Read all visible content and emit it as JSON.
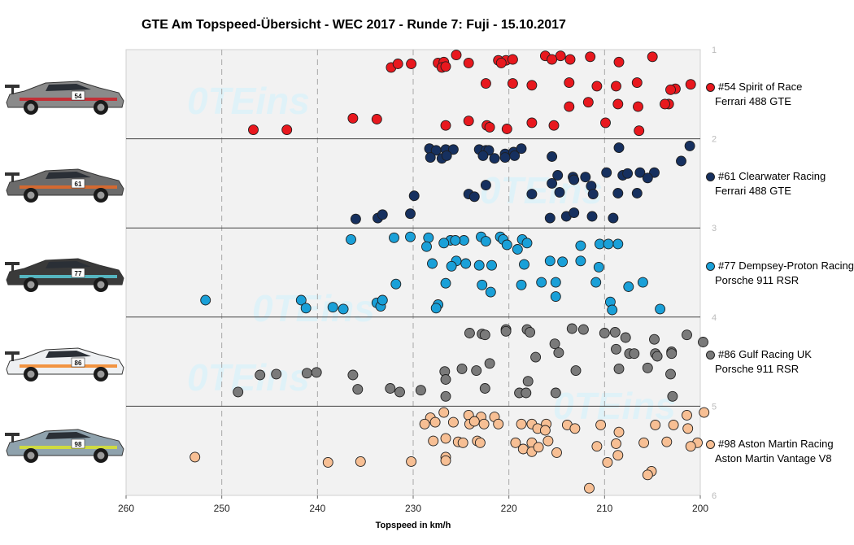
{
  "chart_data": {
    "type": "scatter",
    "title": "GTE Am  Topspeed-Übersicht  - WEC 2017 - Runde 7: Fuji  - 15.10.2017",
    "xlabel": "Topspeed in km/h",
    "xlim": [
      260,
      200
    ],
    "x_ticks": [
      260,
      250,
      240,
      230,
      220,
      210,
      200
    ],
    "x_tick_labels": [
      "260",
      "250",
      "240",
      "230",
      "220",
      "210",
      "200"
    ],
    "ylim": [
      1,
      6
    ],
    "y_ticks": [
      1,
      2,
      3,
      4,
      5,
      6
    ],
    "y_tick_labels": [
      "1",
      "2",
      "3",
      "4",
      "5",
      "6"
    ],
    "grid": true,
    "legend_position": "right",
    "series": [
      {
        "name": "#54 Spirit of Race",
        "car": "Ferrari 488 GTE",
        "color": "#e8181e",
        "points": [
          [
            225.5,
            1.06
          ],
          [
            216.2,
            1.07
          ],
          [
            214.6,
            1.07
          ],
          [
            211.5,
            1.08
          ],
          [
            205.0,
            1.08
          ],
          [
            227.4,
            1.15
          ],
          [
            226.8,
            1.14
          ],
          [
            221.1,
            1.12
          ],
          [
            220.3,
            1.12
          ],
          [
            219.6,
            1.11
          ],
          [
            213.6,
            1.11
          ],
          [
            215.5,
            1.11
          ],
          [
            208.5,
            1.14
          ],
          [
            232.3,
            1.2
          ],
          [
            231.6,
            1.16
          ],
          [
            230.2,
            1.16
          ],
          [
            227.0,
            1.2
          ],
          [
            226.6,
            1.19
          ],
          [
            224.2,
            1.15
          ],
          [
            220.8,
            1.15
          ],
          [
            222.4,
            1.38
          ],
          [
            219.6,
            1.38
          ],
          [
            217.6,
            1.4
          ],
          [
            213.7,
            1.37
          ],
          [
            210.8,
            1.41
          ],
          [
            208.8,
            1.41
          ],
          [
            206.6,
            1.37
          ],
          [
            201.0,
            1.39
          ],
          [
            202.6,
            1.44
          ],
          [
            203.1,
            1.45
          ],
          [
            211.7,
            1.59
          ],
          [
            208.6,
            1.61
          ],
          [
            203.3,
            1.61
          ],
          [
            203.7,
            1.61
          ],
          [
            206.5,
            1.64
          ],
          [
            213.7,
            1.64
          ],
          [
            246.7,
            1.9
          ],
          [
            243.2,
            1.9
          ],
          [
            236.3,
            1.77
          ],
          [
            233.8,
            1.78
          ],
          [
            226.6,
            1.85
          ],
          [
            224.2,
            1.8
          ],
          [
            222.3,
            1.85
          ],
          [
            222.0,
            1.87
          ],
          [
            220.2,
            1.89
          ],
          [
            217.6,
            1.82
          ],
          [
            215.3,
            1.85
          ],
          [
            209.9,
            1.82
          ],
          [
            206.4,
            1.91
          ]
        ]
      },
      {
        "name": "#61 Clearwater Racing",
        "car": "Ferrari 488 GTE",
        "color": "#16305f",
        "points": [
          [
            228.3,
            2.11
          ],
          [
            227.6,
            2.13
          ],
          [
            226.6,
            2.12
          ],
          [
            225.8,
            2.12
          ],
          [
            223.1,
            2.12
          ],
          [
            222.4,
            2.13
          ],
          [
            222.1,
            2.13
          ],
          [
            220.4,
            2.17
          ],
          [
            219.5,
            2.15
          ],
          [
            218.7,
            2.11
          ],
          [
            208.5,
            2.1
          ],
          [
            201.1,
            2.08
          ],
          [
            228.2,
            2.21
          ],
          [
            227.0,
            2.22
          ],
          [
            226.5,
            2.19
          ],
          [
            222.7,
            2.19
          ],
          [
            221.5,
            2.22
          ],
          [
            220.4,
            2.21
          ],
          [
            219.4,
            2.19
          ],
          [
            215.5,
            2.2
          ],
          [
            202.0,
            2.25
          ],
          [
            214.9,
            2.41
          ],
          [
            213.3,
            2.43
          ],
          [
            213.2,
            2.46
          ],
          [
            212.0,
            2.43
          ],
          [
            209.8,
            2.38
          ],
          [
            208.1,
            2.41
          ],
          [
            207.6,
            2.39
          ],
          [
            206.3,
            2.38
          ],
          [
            204.8,
            2.38
          ],
          [
            205.5,
            2.44
          ],
          [
            222.4,
            2.52
          ],
          [
            217.6,
            2.62
          ],
          [
            215.5,
            2.5
          ],
          [
            214.7,
            2.6
          ],
          [
            211.4,
            2.53
          ],
          [
            211.2,
            2.62
          ],
          [
            208.6,
            2.61
          ],
          [
            206.6,
            2.61
          ],
          [
            229.9,
            2.64
          ],
          [
            224.2,
            2.62
          ],
          [
            223.6,
            2.65
          ],
          [
            236.0,
            2.9
          ],
          [
            233.7,
            2.89
          ],
          [
            233.2,
            2.85
          ],
          [
            230.3,
            2.84
          ],
          [
            215.7,
            2.89
          ],
          [
            214.0,
            2.87
          ],
          [
            213.2,
            2.83
          ],
          [
            211.3,
            2.87
          ],
          [
            209.1,
            2.89
          ]
        ]
      },
      {
        "name": "#77 Dempsey-Proton Racing",
        "car": "Porsche 911 RSR",
        "color": "#1aa0d8",
        "points": [
          [
            230.3,
            3.1
          ],
          [
            228.4,
            3.11
          ],
          [
            226.1,
            3.14
          ],
          [
            224.7,
            3.14
          ],
          [
            222.9,
            3.1
          ],
          [
            220.9,
            3.1
          ],
          [
            220.6,
            3.13
          ],
          [
            218.6,
            3.13
          ],
          [
            236.5,
            3.13
          ],
          [
            232.0,
            3.11
          ],
          [
            226.8,
            3.17
          ],
          [
            225.6,
            3.14
          ],
          [
            222.4,
            3.15
          ],
          [
            220.2,
            3.19
          ],
          [
            218.1,
            3.17
          ],
          [
            212.5,
            3.2
          ],
          [
            208.6,
            3.18
          ],
          [
            210.5,
            3.18
          ],
          [
            209.6,
            3.18
          ],
          [
            219.1,
            3.24
          ],
          [
            228.6,
            3.21
          ],
          [
            214.4,
            3.38
          ],
          [
            212.5,
            3.37
          ],
          [
            215.7,
            3.37
          ],
          [
            225.5,
            3.37
          ],
          [
            228.0,
            3.4
          ],
          [
            224.5,
            3.4
          ],
          [
            221.8,
            3.42
          ],
          [
            218.4,
            3.41
          ],
          [
            226.0,
            3.43
          ],
          [
            223.1,
            3.42
          ],
          [
            210.6,
            3.44
          ],
          [
            222.8,
            3.64
          ],
          [
            231.8,
            3.63
          ],
          [
            226.6,
            3.62
          ],
          [
            218.7,
            3.64
          ],
          [
            216.6,
            3.61
          ],
          [
            215.1,
            3.61
          ],
          [
            210.9,
            3.61
          ],
          [
            206.0,
            3.61
          ],
          [
            207.5,
            3.66
          ],
          [
            221.9,
            3.72
          ],
          [
            215.1,
            3.77
          ],
          [
            251.7,
            3.81
          ],
          [
            241.7,
            3.81
          ],
          [
            241.2,
            3.9
          ],
          [
            238.4,
            3.89
          ],
          [
            237.3,
            3.91
          ],
          [
            233.8,
            3.84
          ],
          [
            233.4,
            3.88
          ],
          [
            233.2,
            3.81
          ],
          [
            227.4,
            3.86
          ],
          [
            227.6,
            3.9
          ],
          [
            209.4,
            3.83
          ],
          [
            209.2,
            3.92
          ],
          [
            204.2,
            3.91
          ]
        ]
      },
      {
        "name": "#86 Gulf Racing UK",
        "car": "Porsche 911 RSR",
        "color": "#7a7a7a",
        "points": [
          [
            224.1,
            4.18
          ],
          [
            222.8,
            4.19
          ],
          [
            222.5,
            4.2
          ],
          [
            220.3,
            4.14
          ],
          [
            220.3,
            4.16
          ],
          [
            218.1,
            4.14
          ],
          [
            217.8,
            4.17
          ],
          [
            213.4,
            4.13
          ],
          [
            212.2,
            4.14
          ],
          [
            210.0,
            4.18
          ],
          [
            208.9,
            4.17
          ],
          [
            207.8,
            4.23
          ],
          [
            204.8,
            4.25
          ],
          [
            201.4,
            4.2
          ],
          [
            199.7,
            4.28
          ],
          [
            215.2,
            4.3
          ],
          [
            214.8,
            4.4
          ],
          [
            208.8,
            4.36
          ],
          [
            207.4,
            4.41
          ],
          [
            206.9,
            4.41
          ],
          [
            204.7,
            4.41
          ],
          [
            203.0,
            4.39
          ],
          [
            204.5,
            4.44
          ],
          [
            203.0,
            4.41
          ],
          [
            217.2,
            4.45
          ],
          [
            222.0,
            4.52
          ],
          [
            208.5,
            4.58
          ],
          [
            205.5,
            4.57
          ],
          [
            203.1,
            4.64
          ],
          [
            226.7,
            4.61
          ],
          [
            224.9,
            4.58
          ],
          [
            223.4,
            4.6
          ],
          [
            213.0,
            4.6
          ],
          [
            246.0,
            4.65
          ],
          [
            244.3,
            4.64
          ],
          [
            241.1,
            4.63
          ],
          [
            240.1,
            4.62
          ],
          [
            236.3,
            4.65
          ],
          [
            226.6,
            4.7
          ],
          [
            218.0,
            4.72
          ],
          [
            235.8,
            4.81
          ],
          [
            232.4,
            4.8
          ],
          [
            231.4,
            4.84
          ],
          [
            229.2,
            4.82
          ],
          [
            222.5,
            4.8
          ],
          [
            218.9,
            4.85
          ],
          [
            218.2,
            4.85
          ],
          [
            215.1,
            4.85
          ],
          [
            248.3,
            4.84
          ],
          [
            226.6,
            4.89
          ],
          [
            202.9,
            4.89
          ]
        ]
      },
      {
        "name": "#98 Aston Martin Racing",
        "car": "Aston Martin Vantage V8",
        "color": "#f7bf94",
        "points": [
          [
            226.8,
            5.07
          ],
          [
            224.2,
            5.1
          ],
          [
            222.9,
            5.12
          ],
          [
            221.5,
            5.12
          ],
          [
            199.6,
            5.07
          ],
          [
            201.4,
            5.1
          ],
          [
            228.2,
            5.13
          ],
          [
            228.8,
            5.2
          ],
          [
            227.7,
            5.18
          ],
          [
            225.8,
            5.18
          ],
          [
            224.1,
            5.2
          ],
          [
            223.6,
            5.17
          ],
          [
            222.6,
            5.2
          ],
          [
            221.1,
            5.2
          ],
          [
            218.7,
            5.2
          ],
          [
            217.6,
            5.2
          ],
          [
            216.1,
            5.2
          ],
          [
            213.9,
            5.21
          ],
          [
            210.4,
            5.21
          ],
          [
            204.7,
            5.21
          ],
          [
            202.8,
            5.21
          ],
          [
            201.3,
            5.25
          ],
          [
            217.0,
            5.25
          ],
          [
            216.2,
            5.27
          ],
          [
            213.1,
            5.25
          ],
          [
            208.5,
            5.29
          ],
          [
            226.6,
            5.36
          ],
          [
            227.9,
            5.39
          ],
          [
            225.3,
            5.4
          ],
          [
            224.8,
            5.41
          ],
          [
            223.3,
            5.39
          ],
          [
            223.0,
            5.41
          ],
          [
            217.6,
            5.41
          ],
          [
            215.9,
            5.39
          ],
          [
            210.8,
            5.45
          ],
          [
            208.8,
            5.42
          ],
          [
            205.9,
            5.41
          ],
          [
            203.5,
            5.4
          ],
          [
            200.3,
            5.41
          ],
          [
            201.0,
            5.45
          ],
          [
            219.3,
            5.41
          ],
          [
            218.5,
            5.48
          ],
          [
            217.6,
            5.51
          ],
          [
            216.9,
            5.46
          ],
          [
            215.0,
            5.52
          ],
          [
            226.6,
            5.57
          ],
          [
            226.6,
            5.61
          ],
          [
            230.2,
            5.62
          ],
          [
            235.5,
            5.62
          ],
          [
            238.9,
            5.63
          ],
          [
            252.8,
            5.57
          ],
          [
            209.7,
            5.63
          ],
          [
            208.6,
            5.55
          ],
          [
            205.1,
            5.73
          ],
          [
            205.5,
            5.77
          ],
          [
            211.6,
            5.92
          ]
        ]
      }
    ]
  },
  "legend": [
    {
      "name": "#54 Spirit of Race",
      "car": "Ferrari 488 GTE",
      "color": "#e8181e"
    },
    {
      "name": "#61 Clearwater Racing",
      "car": "Ferrari 488 GTE",
      "color": "#16305f"
    },
    {
      "name": "#77 Dempsey-Proton Racing",
      "car": "Porsche 911 RSR",
      "color": "#1aa0d8"
    },
    {
      "name": "#86 Gulf Racing UK",
      "car": "Porsche 911 RSR",
      "color": "#7a7a7a"
    },
    {
      "name": "#98 Aston Martin Racing",
      "car": "Aston Martin Vantage V8",
      "color": "#f7bf94"
    }
  ],
  "watermark": "0TEins",
  "car_images": [
    {
      "number": "54",
      "body": "#8a8a8a",
      "accent": "#c8262d",
      "icon": "car-ferrari-54-icon"
    },
    {
      "number": "61",
      "body": "#6b6b6b",
      "accent": "#e0692a",
      "icon": "car-ferrari-61-icon"
    },
    {
      "number": "77",
      "body": "#3a3a3a",
      "accent": "#59c3cf",
      "icon": "car-porsche-77-icon"
    },
    {
      "number": "86",
      "body": "#eef0f2",
      "accent": "#f28a2e",
      "icon": "car-porsche-86-icon"
    },
    {
      "number": "98",
      "body": "#8fa2ad",
      "accent": "#d6e035",
      "icon": "car-aston-98-icon"
    }
  ]
}
